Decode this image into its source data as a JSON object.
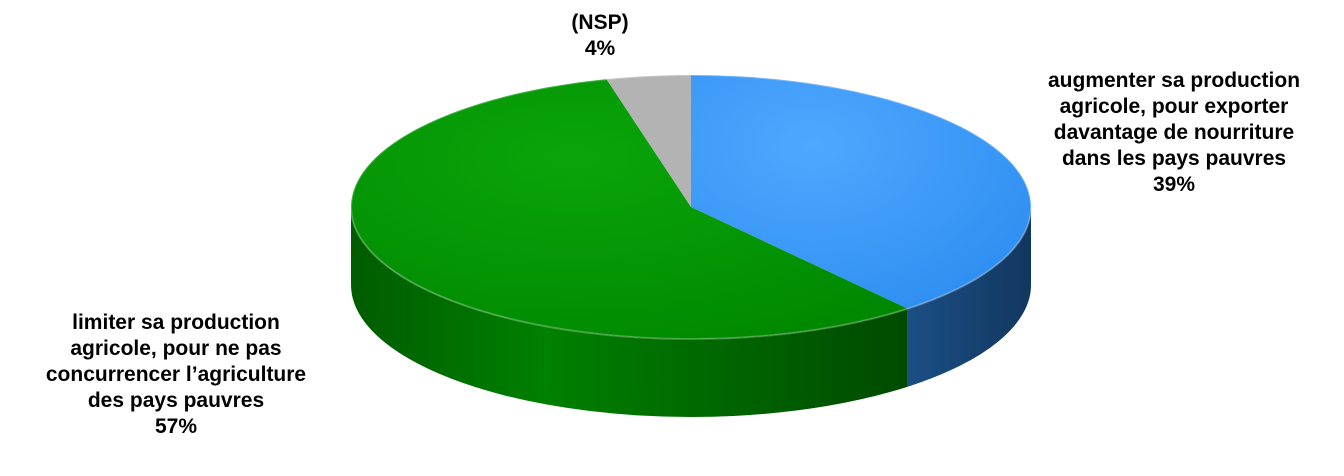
{
  "chart_data": {
    "type": "pie",
    "style": "3d",
    "slices": [
      {
        "label": "augmenter sa production agricole, pour exporter davantage de nourriture dans les pays pauvres",
        "value": 39,
        "value_label": "39%",
        "color": "#3399FF",
        "side_color": "#1A4D80"
      },
      {
        "label": "limiter sa production agricole, pour ne pas concurrencer l’agriculture des pays pauvres",
        "value": 57,
        "value_label": "57%",
        "color": "#009900",
        "side_color": "#006A00"
      },
      {
        "label": "(NSP)",
        "value": 4,
        "value_label": "4%",
        "color": "#B3B3B3",
        "side_color": "#808080"
      }
    ]
  },
  "labels": {
    "augmenter": {
      "lines": [
        "augmenter sa production",
        "agricole, pour exporter",
        "davantage de nourriture",
        "dans les pays pauvres"
      ],
      "pct": "39%"
    },
    "limiter": {
      "lines": [
        "limiter sa production",
        "agricole, pour ne pas",
        "concurrencer l’agriculture",
        "des pays pauvres"
      ],
      "pct": "57%"
    },
    "nsp": {
      "lines": [
        "(NSP)"
      ],
      "pct": "4%"
    }
  }
}
